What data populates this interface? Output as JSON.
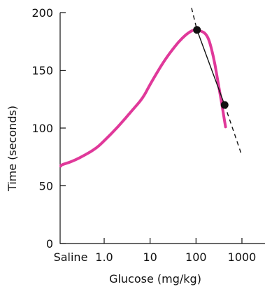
{
  "chart_data": {
    "type": "line",
    "title": "",
    "xlabel": "Glucose (mg/kg)",
    "ylabel": "Time (seconds)",
    "x_scale": "log",
    "x_categories_special": [
      "Saline"
    ],
    "x_ticks": [
      {
        "label": "Saline",
        "value": 0.1
      },
      {
        "label": "1.0",
        "value": 1
      },
      {
        "label": "10",
        "value": 10
      },
      {
        "label": "100",
        "value": 100
      },
      {
        "label": "1000",
        "value": 1000
      }
    ],
    "y_ticks": [
      0,
      50,
      100,
      150,
      200
    ],
    "xlim": [
      0.05,
      2000
    ],
    "ylim": [
      0,
      200
    ],
    "grid": false,
    "colors": {
      "curve": "#e0399a",
      "line": "#111111",
      "points": "#111111",
      "axes": "#111111"
    },
    "series": [
      {
        "style": "curve",
        "x": [
          0.05,
          0.1,
          0.2,
          0.4,
          0.7,
          1,
          2,
          4,
          7,
          10,
          20,
          35,
          50,
          70,
          90,
          100,
          130,
          160,
          190,
          220,
          260,
          300,
          350,
          400,
          440
        ],
        "y": [
          67,
          68,
          71,
          77,
          83,
          89,
          101,
          115,
          126,
          138,
          158,
          171,
          178,
          183,
          185,
          185,
          184,
          182,
          177,
          168,
          155,
          140,
          125,
          111,
          101
        ]
      },
      {
        "style": "solid-line",
        "x": [
          105,
          420
        ],
        "y": [
          185,
          120
        ]
      },
      {
        "style": "dashed-line",
        "x": [
          80,
          105
        ],
        "y": [
          204,
          185
        ]
      },
      {
        "style": "dashed-line",
        "x": [
          420,
          1000
        ],
        "y": [
          120,
          76
        ]
      },
      {
        "style": "points",
        "x": [
          105,
          420
        ],
        "y": [
          185,
          120
        ]
      }
    ]
  }
}
